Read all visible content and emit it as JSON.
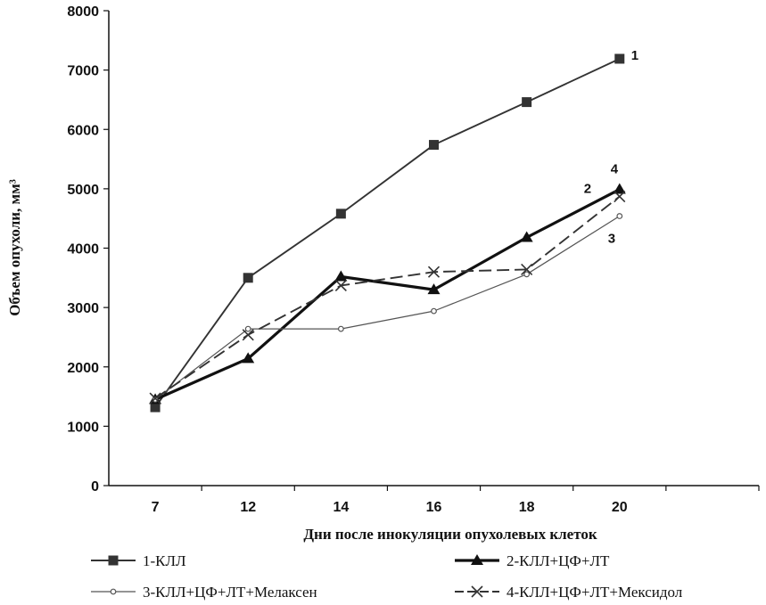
{
  "chart_data": {
    "type": "line",
    "x": [
      7,
      12,
      14,
      16,
      18,
      20
    ],
    "xlabel": "Дни после инокуляции опухолевых клеток",
    "ylabel": "Объем опухоли, мм³",
    "ylim": [
      0,
      8000
    ],
    "yticks": [
      0,
      1000,
      2000,
      3000,
      4000,
      5000,
      6000,
      7000,
      8000
    ],
    "grid": false,
    "legend_position": "bottom",
    "series": [
      {
        "name": "1-КЛЛ",
        "label": "1",
        "values": [
          1320,
          3500,
          4580,
          5740,
          6460,
          7190
        ],
        "color": "#333333",
        "marker": "square",
        "dash": "solid",
        "weight": "medium"
      },
      {
        "name": "2-КЛЛ+ЦФ+ЛТ",
        "label": "2",
        "values": [
          1450,
          2140,
          3520,
          3300,
          4180,
          4990
        ],
        "color": "#111111",
        "marker": "triangle",
        "dash": "solid",
        "weight": "thick"
      },
      {
        "name": "3-КЛЛ+ЦФ+ЛТ+Мелаксен",
        "label": "3",
        "values": [
          1450,
          2640,
          2640,
          2940,
          3560,
          4540
        ],
        "color": "#555555",
        "marker": "circle",
        "dash": "solid",
        "weight": "thin"
      },
      {
        "name": "4-КЛЛ+ЦФ+ЛТ+Мексидол",
        "label": "4",
        "values": [
          1470,
          2540,
          3370,
          3600,
          3640,
          4870
        ],
        "color": "#333333",
        "marker": "x",
        "dash": "dashed",
        "weight": "medium"
      }
    ]
  }
}
